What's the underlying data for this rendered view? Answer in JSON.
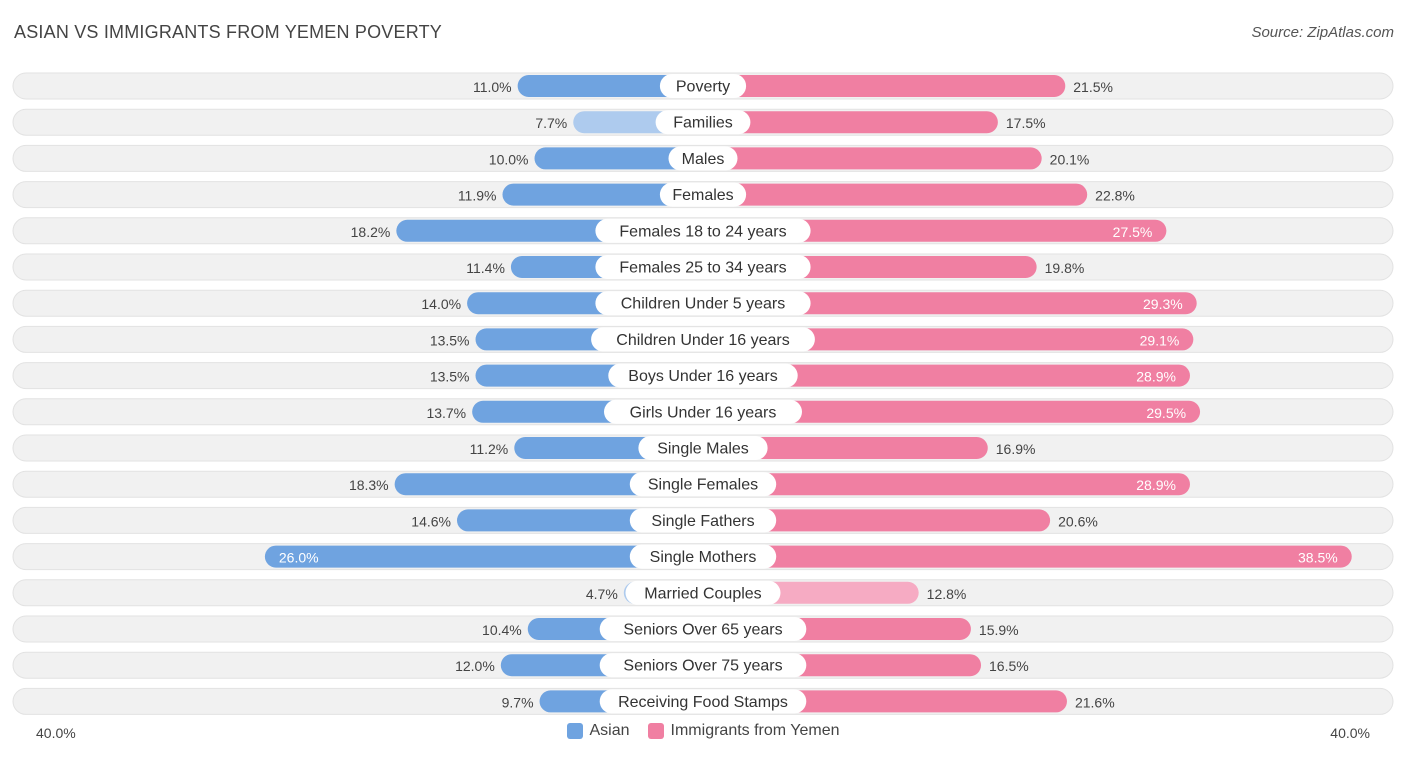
{
  "header": {
    "title": "ASIAN VS IMMIGRANTS FROM YEMEN POVERTY",
    "source": "Source: ZipAtlas.com"
  },
  "axis": {
    "left_label": "40.0%",
    "right_label": "40.0%"
  },
  "legend": {
    "asian": "Asian",
    "yemen": "Immigrants from Yemen"
  },
  "colors": {
    "asian": "#6fa3e0",
    "asian_light": "#aecbee",
    "yemen": "#f07fa2",
    "yemen_light": "#f6abc3"
  },
  "chart_data": {
    "type": "bar",
    "title": "ASIAN VS IMMIGRANTS FROM YEMEN POVERTY",
    "xlim": [
      -40,
      40
    ],
    "categories": [
      "Poverty",
      "Families",
      "Males",
      "Females",
      "Females 18 to 24 years",
      "Females 25 to 34 years",
      "Children Under 5 years",
      "Children Under 16 years",
      "Boys Under 16 years",
      "Girls Under 16 years",
      "Single Males",
      "Single Females",
      "Single Fathers",
      "Single Mothers",
      "Married Couples",
      "Seniors Over 65 years",
      "Seniors Over 75 years",
      "Receiving Food Stamps"
    ],
    "series": [
      {
        "name": "Asian",
        "values": [
          11.0,
          7.7,
          10.0,
          11.9,
          18.2,
          11.4,
          14.0,
          13.5,
          13.5,
          13.7,
          11.2,
          18.3,
          14.6,
          26.0,
          4.7,
          10.4,
          12.0,
          9.7
        ],
        "labels": [
          "11.0%",
          "7.7%",
          "10.0%",
          "11.9%",
          "18.2%",
          "11.4%",
          "14.0%",
          "13.5%",
          "13.5%",
          "13.7%",
          "11.2%",
          "18.3%",
          "14.6%",
          "26.0%",
          "4.7%",
          "10.4%",
          "12.0%",
          "9.7%"
        ]
      },
      {
        "name": "Immigrants from Yemen",
        "values": [
          21.5,
          17.5,
          20.1,
          22.8,
          27.5,
          19.8,
          29.3,
          29.1,
          28.9,
          29.5,
          16.9,
          28.9,
          20.6,
          38.5,
          12.8,
          15.9,
          16.5,
          21.6
        ],
        "labels": [
          "21.5%",
          "17.5%",
          "20.1%",
          "22.8%",
          "27.5%",
          "19.8%",
          "29.3%",
          "29.1%",
          "28.9%",
          "29.5%",
          "16.9%",
          "28.9%",
          "20.6%",
          "38.5%",
          "12.8%",
          "15.9%",
          "16.5%",
          "21.6%"
        ]
      }
    ]
  }
}
